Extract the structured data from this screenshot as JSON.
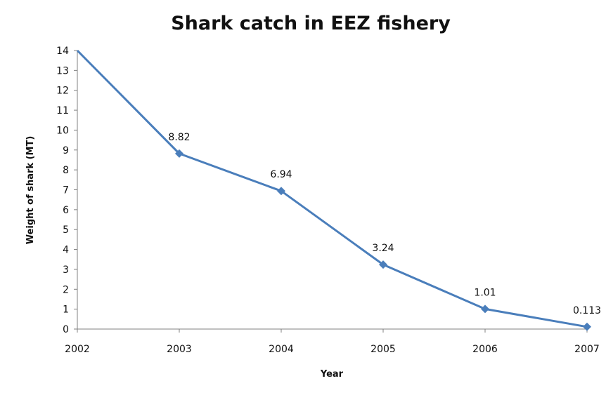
{
  "chart_data": {
    "type": "line",
    "title": "Shark catch in EEZ fishery",
    "xlabel": "Year",
    "ylabel": "Weight of shark (MT)",
    "x": [
      2002,
      2003,
      2004,
      2005,
      2006,
      2007
    ],
    "x_tick_labels": [
      "2002",
      "2003",
      "2004",
      "2005",
      "2006",
      "2007"
    ],
    "y_tick_labels": [
      "0",
      "1",
      "2",
      "3",
      "4",
      "5",
      "6",
      "7",
      "8",
      "9",
      "10",
      "11",
      "12",
      "13",
      "14"
    ],
    "xlim": [
      2002,
      2007
    ],
    "ylim": [
      0,
      14
    ],
    "grid": false,
    "series": [
      {
        "values": [
          14,
          8.82,
          6.94,
          3.24,
          1.01,
          0.113
        ],
        "data_labels": [
          "",
          "8.82",
          "6.94",
          "3.24",
          "1.01",
          "0.113"
        ],
        "color": "#4a7ebb",
        "marker": "diamond"
      }
    ]
  }
}
